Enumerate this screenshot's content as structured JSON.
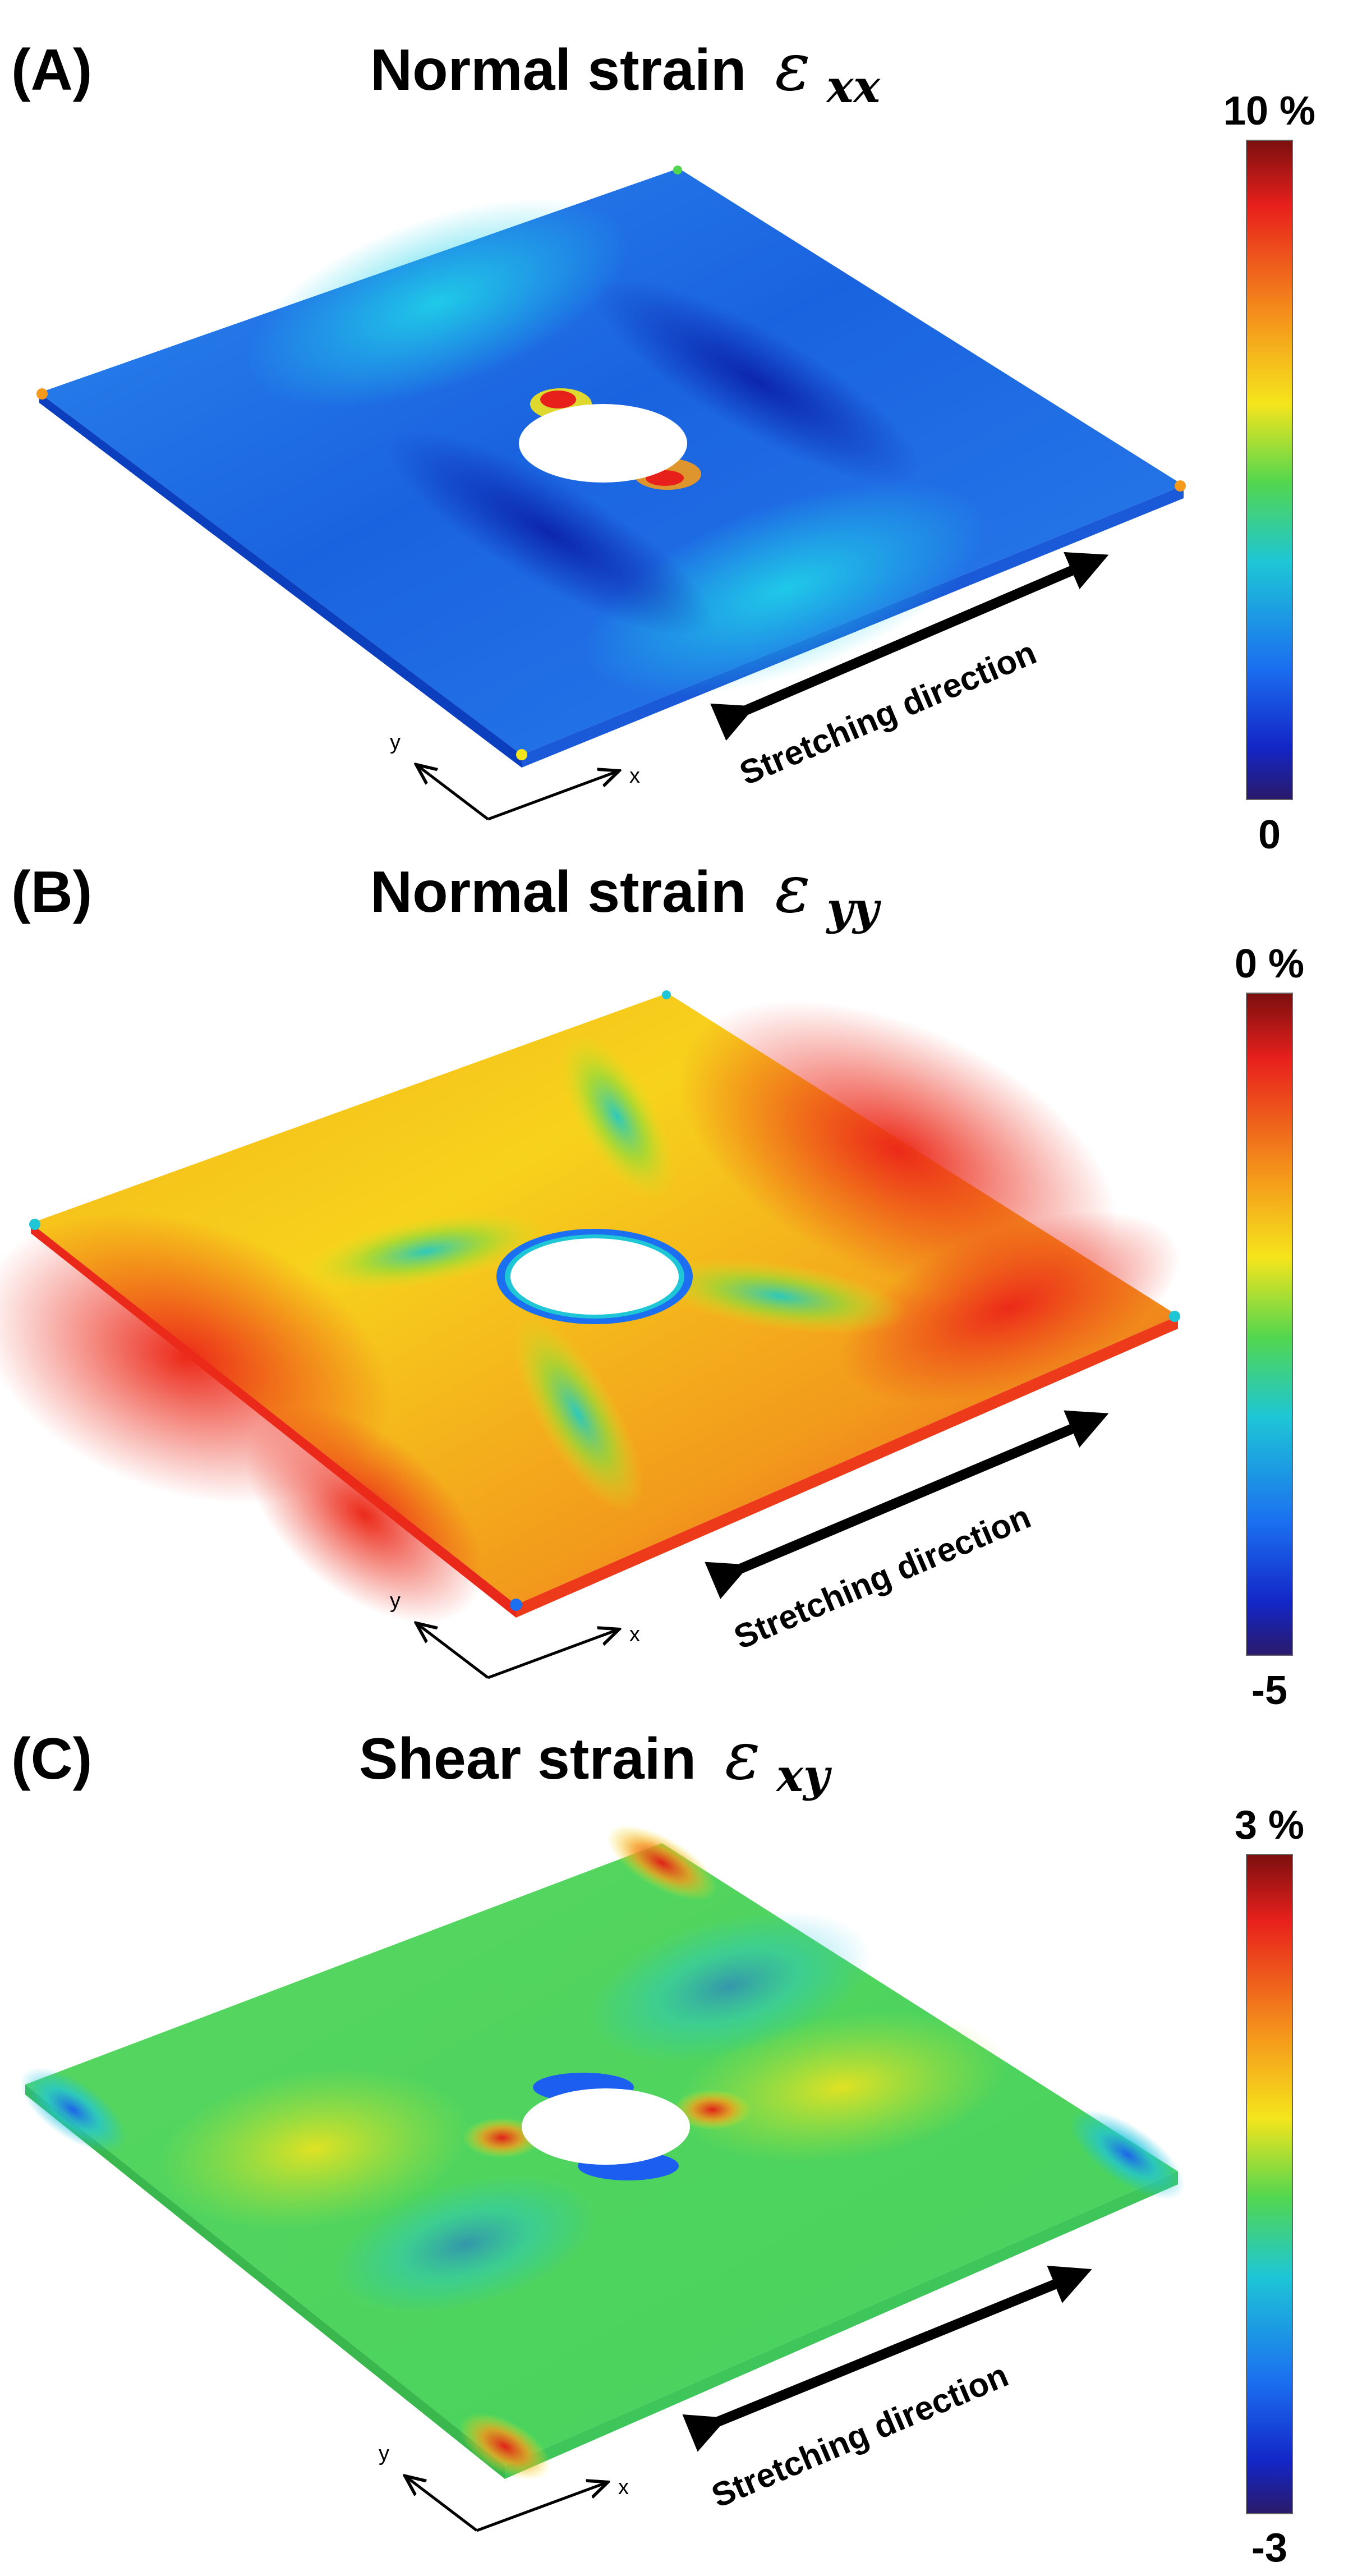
{
  "panels": [
    {
      "letter": "(A)",
      "title": "Normal strain",
      "symbol": "ε",
      "subscript": "xx",
      "scale_max": "10 %",
      "scale_min": "0",
      "stretch_label": "Stretching direction",
      "axis_x": "x",
      "axis_y": "y",
      "plate_base_color": "#1f6fe6",
      "plate_edge_color": "#0c3fbe"
    },
    {
      "letter": "(B)",
      "title": "Normal strain",
      "symbol": "ε",
      "subscript": "yy",
      "scale_max": "0 %",
      "scale_min": "-5",
      "stretch_label": "Stretching direction",
      "axis_x": "x",
      "axis_y": "y",
      "plate_base_color": "#f4a51c",
      "plate_edge_color": "#e92e1a"
    },
    {
      "letter": "(C)",
      "title": "Shear strain",
      "symbol": "ε",
      "subscript": "xy",
      "scale_max": "3 %",
      "scale_min": "-3",
      "stretch_label": "Stretching direction",
      "axis_x": "x",
      "axis_y": "y",
      "plate_base_color": "#4fd65c",
      "plate_edge_color": "#3ab84e"
    }
  ],
  "colorbar": {
    "stops": [
      "#7b0f0f",
      "#e8201c",
      "#f59a1b",
      "#f5e51c",
      "#52d64f",
      "#1ec6d6",
      "#1b6ff0",
      "#1326c7",
      "#2a1a6b"
    ]
  }
}
